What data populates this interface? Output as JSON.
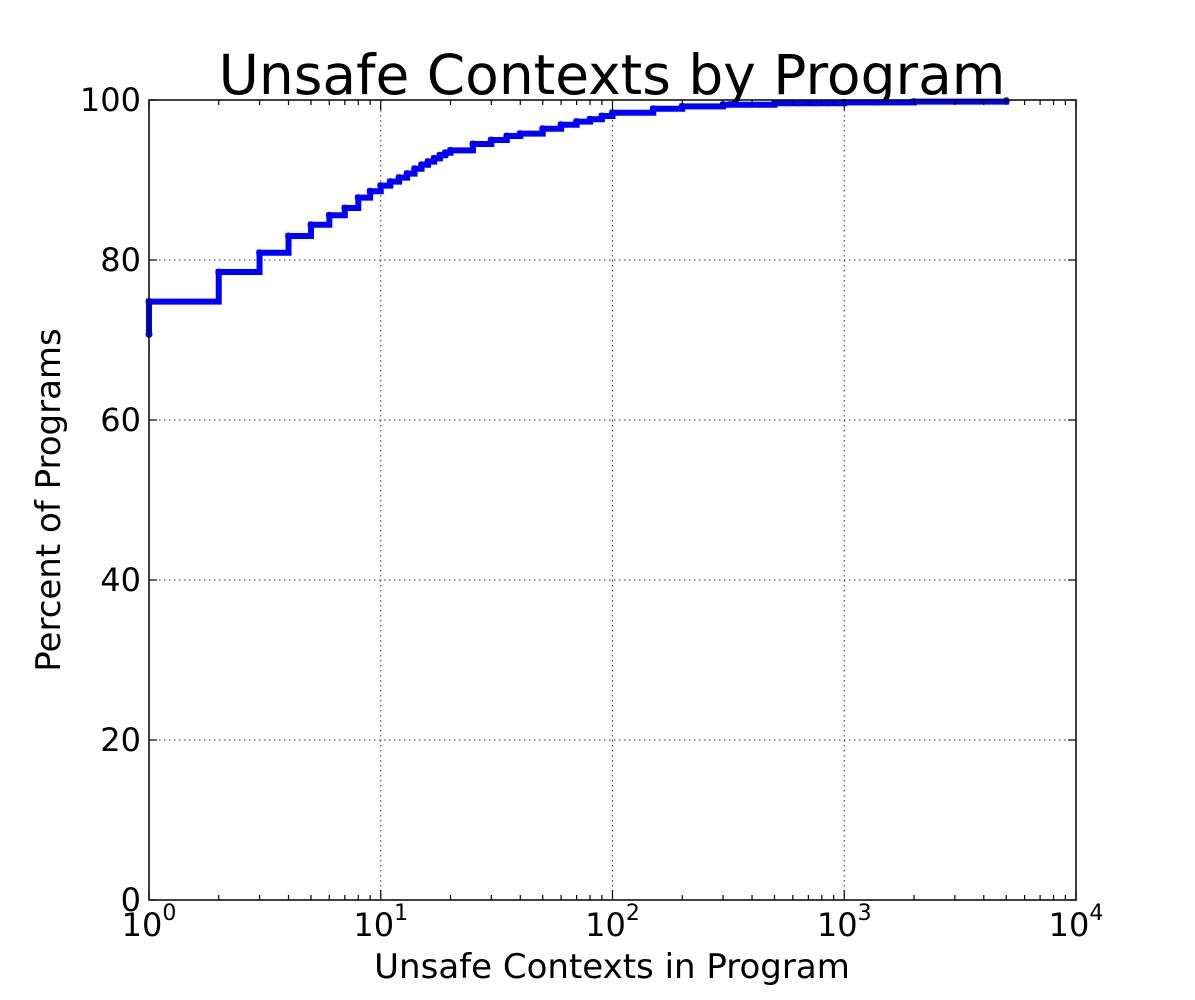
{
  "chart_data": {
    "type": "line",
    "title": "Unsafe Contexts by Program",
    "xlabel": "Unsafe Contexts in Program",
    "ylabel": "Percent of Programs",
    "x_scale": "log",
    "xlim": [
      1,
      10000
    ],
    "ylim": [
      0,
      100
    ],
    "x_ticks": [
      {
        "value": 1,
        "base": "10",
        "exp": "0"
      },
      {
        "value": 10,
        "base": "10",
        "exp": "1"
      },
      {
        "value": 100,
        "base": "10",
        "exp": "2"
      },
      {
        "value": 1000,
        "base": "10",
        "exp": "3"
      },
      {
        "value": 10000,
        "base": "10",
        "exp": "4"
      }
    ],
    "y_ticks": [
      {
        "value": 0,
        "label": "0"
      },
      {
        "value": 20,
        "label": "20"
      },
      {
        "value": 40,
        "label": "40"
      },
      {
        "value": 60,
        "label": "60"
      },
      {
        "value": 80,
        "label": "80"
      },
      {
        "value": 100,
        "label": "100"
      }
    ],
    "grid": true,
    "series": [
      {
        "name": "programs",
        "color": "#0000ff",
        "step": true,
        "x": [
          1,
          1,
          2,
          3,
          4,
          5,
          6,
          7,
          8,
          9,
          10,
          11,
          12,
          13,
          14,
          15,
          16,
          17,
          18,
          19,
          20,
          25,
          30,
          35,
          40,
          50,
          60,
          70,
          80,
          90,
          100,
          150,
          200,
          300,
          500,
          1000,
          2000,
          5000
        ],
        "y": [
          70.7,
          74.8,
          78.5,
          80.9,
          83.0,
          84.4,
          85.6,
          86.5,
          87.8,
          88.6,
          89.3,
          89.8,
          90.3,
          90.8,
          91.4,
          91.9,
          92.3,
          92.7,
          93.1,
          93.4,
          93.7,
          94.5,
          95.0,
          95.5,
          95.8,
          96.4,
          96.9,
          97.3,
          97.6,
          98.0,
          98.4,
          98.9,
          99.2,
          99.4,
          99.6,
          99.7,
          99.8,
          99.9
        ]
      }
    ]
  }
}
